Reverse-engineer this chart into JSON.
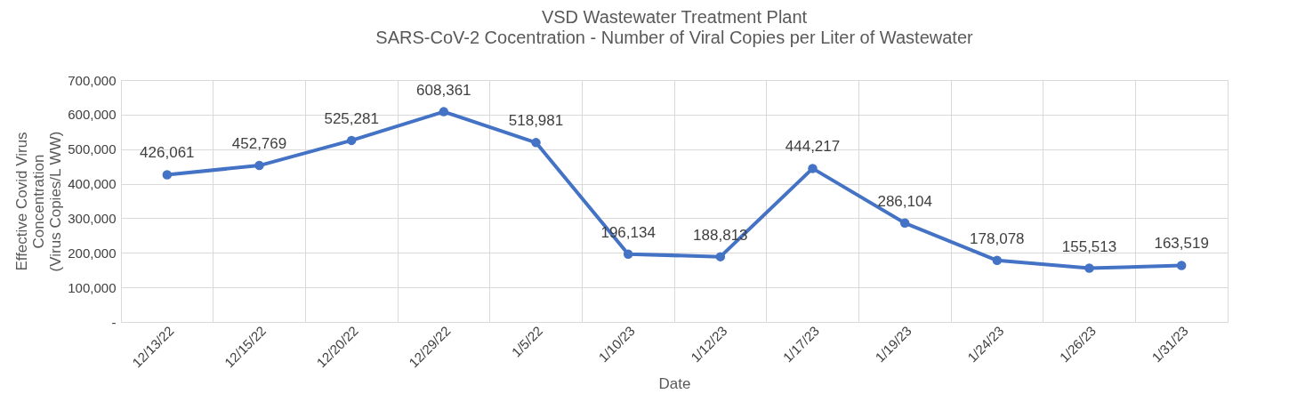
{
  "chart_data": {
    "type": "line",
    "title": "VSD Wastewater Treatment Plant",
    "subtitle": "SARS-CoV-2 Cocentration - Number of Viral Copies per Liter of Wastewater",
    "xlabel": "Date",
    "ylabel": "Effective Covid Virus\nConcentration\n(Virus Copies/L WW)",
    "categories": [
      "12/13/22",
      "12/15/22",
      "12/20/22",
      "12/29/22",
      "1/5/22",
      "1/10/23",
      "1/12/23",
      "1/17/23",
      "1/19/23",
      "1/24/23",
      "1/26/23",
      "1/31/23"
    ],
    "series": [
      {
        "color": "#4472c4",
        "values": [
          426061,
          452769,
          525281,
          608361,
          518981,
          196134,
          188813,
          444217,
          286104,
          178078,
          155513,
          163519
        ],
        "value_labels": [
          "426,061",
          "452,769",
          "525,281",
          "608,361",
          "518,981",
          "196,134",
          "188,813",
          "444,217",
          "286,104",
          "178,078",
          "155,513",
          "163,519"
        ]
      }
    ],
    "ylim": [
      0,
      700000
    ],
    "yticks": [
      {
        "value": 0,
        "label": "-"
      },
      {
        "value": 100000,
        "label": "100,000"
      },
      {
        "value": 200000,
        "label": "200,000"
      },
      {
        "value": 300000,
        "label": "300,000"
      },
      {
        "value": 400000,
        "label": "400,000"
      },
      {
        "value": 500000,
        "label": "500,000"
      },
      {
        "value": 600000,
        "label": "600,000"
      },
      {
        "value": 700000,
        "label": "700,000"
      }
    ],
    "grid": true,
    "marker": "circle",
    "line_style": "solid"
  }
}
